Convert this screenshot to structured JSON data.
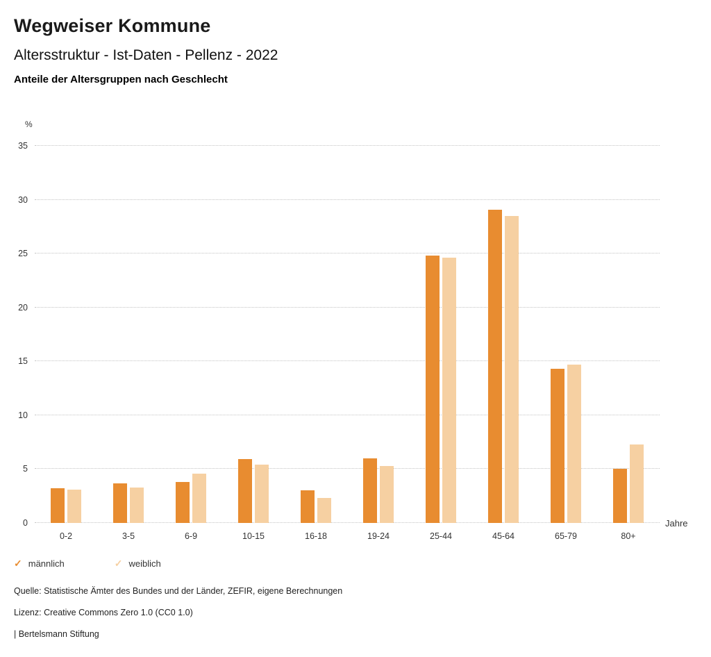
{
  "header": {
    "title": "Wegweiser Kommune",
    "subtitle": "Altersstruktur - Ist-Daten - Pellenz - 2022",
    "chart_heading": "Anteile der Altersgruppen nach Geschlecht"
  },
  "chart_data": {
    "type": "bar",
    "categories": [
      "0-2",
      "3-5",
      "6-9",
      "10-15",
      "16-18",
      "19-24",
      "25-44",
      "45-64",
      "65-79",
      "80+"
    ],
    "series": [
      {
        "name": "männlich",
        "color": "#e88c30",
        "values": [
          3.2,
          3.7,
          3.8,
          5.9,
          3.0,
          6.0,
          24.8,
          29.1,
          14.3,
          5.0
        ]
      },
      {
        "name": "weiblich",
        "color": "#f6d0a2",
        "values": [
          3.1,
          3.3,
          4.6,
          5.4,
          2.3,
          5.3,
          24.6,
          28.5,
          14.7,
          7.3
        ]
      }
    ],
    "ylabel": "%",
    "xlabel": "Jahre",
    "ylim": [
      0,
      35
    ],
    "ytick_step": 5,
    "grid": "horizontal-dotted",
    "legend_position": "bottom-left"
  },
  "legend": {
    "check_icon": "✓"
  },
  "footer": {
    "source": "Quelle: Statistische Ämter des Bundes und der Länder, ZEFIR, eigene Berechnungen",
    "license": "Lizenz: Creative Commons Zero 1.0 (CC0 1.0)",
    "attribution": "| Bertelsmann Stiftung"
  }
}
